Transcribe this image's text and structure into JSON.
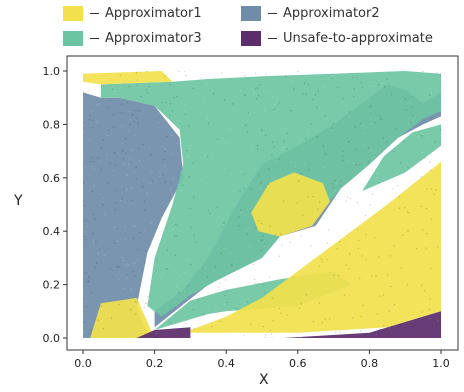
{
  "chart_data": {
    "type": "scatter",
    "title": "",
    "xlabel": "X",
    "ylabel": "Y",
    "xlim": [
      -0.05,
      1.05
    ],
    "ylim": [
      -0.05,
      1.05
    ],
    "xticks": [
      "0.0",
      "0.2",
      "0.4",
      "0.6",
      "0.8",
      "1.0"
    ],
    "yticks": [
      "0.0",
      "0.2",
      "0.4",
      "0.6",
      "0.8",
      "1.0"
    ],
    "grid": false,
    "legend_position": "top",
    "series": [
      {
        "name": "Approximator1",
        "color": "#f2e14c"
      },
      {
        "name": "Approximator2",
        "color": "#6f8ca8"
      },
      {
        "name": "Approximator3",
        "color": "#6cc5a2"
      },
      {
        "name": "Unsafe-to-approximate",
        "color": "#5b2d6b"
      }
    ],
    "regions": {
      "Approximator1": [
        [
          [
            0.0,
            0.99
          ],
          [
            0.22,
            1.0
          ],
          [
            0.25,
            0.96
          ],
          [
            0.05,
            0.95
          ],
          [
            0.0,
            0.96
          ]
        ],
        [
          [
            0.02,
            0.0
          ],
          [
            0.05,
            0.13
          ],
          [
            0.15,
            0.15
          ],
          [
            0.2,
            0.0
          ]
        ],
        [
          [
            0.3,
            0.03
          ],
          [
            0.4,
            0.08
          ],
          [
            0.5,
            0.15
          ],
          [
            0.65,
            0.3
          ],
          [
            0.85,
            0.5
          ],
          [
            1.0,
            0.66
          ],
          [
            1.0,
            0.1
          ],
          [
            0.85,
            0.04
          ],
          [
            0.6,
            0.02
          ],
          [
            0.3,
            0.02
          ]
        ],
        [
          [
            0.47,
            0.47
          ],
          [
            0.52,
            0.58
          ],
          [
            0.59,
            0.62
          ],
          [
            0.67,
            0.58
          ],
          [
            0.69,
            0.51
          ],
          [
            0.64,
            0.42
          ],
          [
            0.55,
            0.38
          ],
          [
            0.49,
            0.4
          ]
        ]
      ],
      "Approximator2": [
        [
          [
            0.0,
            0.0
          ],
          [
            0.0,
            0.92
          ],
          [
            0.05,
            0.9
          ],
          [
            0.1,
            0.9
          ],
          [
            0.2,
            0.87
          ],
          [
            0.27,
            0.75
          ],
          [
            0.28,
            0.6
          ],
          [
            0.22,
            0.45
          ],
          [
            0.18,
            0.32
          ],
          [
            0.15,
            0.12
          ],
          [
            0.18,
            0.02
          ],
          [
            0.22,
            0.0
          ]
        ],
        [
          [
            0.2,
            0.04
          ],
          [
            0.35,
            0.2
          ],
          [
            0.5,
            0.3
          ],
          [
            0.55,
            0.38
          ],
          [
            0.65,
            0.42
          ],
          [
            0.72,
            0.56
          ],
          [
            0.8,
            0.65
          ],
          [
            0.88,
            0.75
          ],
          [
            0.95,
            0.8
          ],
          [
            1.0,
            0.83
          ],
          [
            1.0,
            0.92
          ],
          [
            0.95,
            0.88
          ],
          [
            0.9,
            0.93
          ],
          [
            0.85,
            0.95
          ],
          [
            0.8,
            0.9
          ],
          [
            0.7,
            0.8
          ],
          [
            0.6,
            0.72
          ],
          [
            0.5,
            0.65
          ],
          [
            0.42,
            0.48
          ],
          [
            0.35,
            0.3
          ],
          [
            0.28,
            0.18
          ],
          [
            0.2,
            0.1
          ]
        ]
      ],
      "Approximator3": [
        [
          [
            0.05,
            0.95
          ],
          [
            0.25,
            0.96
          ],
          [
            0.35,
            0.97
          ],
          [
            0.5,
            0.98
          ],
          [
            0.7,
            0.99
          ],
          [
            0.9,
            1.0
          ],
          [
            1.0,
            0.99
          ],
          [
            1.0,
            0.85
          ],
          [
            0.95,
            0.82
          ],
          [
            0.88,
            0.75
          ],
          [
            0.8,
            0.65
          ],
          [
            0.72,
            0.56
          ],
          [
            0.65,
            0.45
          ],
          [
            0.55,
            0.38
          ],
          [
            0.5,
            0.3
          ],
          [
            0.38,
            0.22
          ],
          [
            0.3,
            0.16
          ],
          [
            0.22,
            0.08
          ],
          [
            0.18,
            0.12
          ],
          [
            0.2,
            0.3
          ],
          [
            0.25,
            0.5
          ],
          [
            0.28,
            0.65
          ],
          [
            0.27,
            0.78
          ],
          [
            0.2,
            0.87
          ],
          [
            0.1,
            0.9
          ],
          [
            0.05,
            0.9
          ]
        ],
        [
          [
            0.2,
            0.03
          ],
          [
            0.35,
            0.09
          ],
          [
            0.4,
            0.1
          ],
          [
            0.6,
            0.12
          ],
          [
            0.75,
            0.2
          ],
          [
            0.7,
            0.25
          ],
          [
            0.55,
            0.22
          ],
          [
            0.4,
            0.18
          ],
          [
            0.3,
            0.14
          ]
        ],
        [
          [
            0.78,
            0.55
          ],
          [
            0.9,
            0.62
          ],
          [
            1.0,
            0.72
          ],
          [
            1.0,
            0.8
          ],
          [
            0.92,
            0.77
          ],
          [
            0.84,
            0.68
          ]
        ]
      ],
      "Unsafe-to-approximate": [
        [
          [
            0.15,
            0.0
          ],
          [
            0.3,
            0.0
          ],
          [
            0.3,
            0.04
          ],
          [
            0.2,
            0.03
          ]
        ],
        [
          [
            0.56,
            0.0
          ],
          [
            0.8,
            0.02
          ],
          [
            1.0,
            0.1
          ],
          [
            1.0,
            0.0
          ]
        ]
      ]
    }
  }
}
